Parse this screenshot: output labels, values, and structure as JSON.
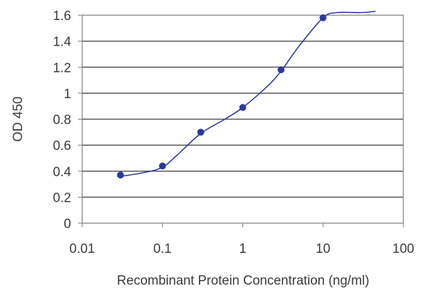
{
  "chart_data": {
    "type": "line",
    "title": "",
    "xlabel": "Recombinant Protein Concentration (ng/ml)",
    "ylabel": "OD 450",
    "x_scale": "log",
    "xlim": [
      0.01,
      100
    ],
    "ylim": [
      0,
      1.6
    ],
    "x_ticks": [
      0.01,
      0.1,
      1,
      10,
      100
    ],
    "x_tick_labels": [
      "0.01",
      "0.1",
      "1",
      "10",
      "100"
    ],
    "y_ticks": [
      0,
      0.2,
      0.4,
      0.6,
      0.8,
      1,
      1.2,
      1.4,
      1.6
    ],
    "y_tick_labels": [
      "0",
      "0.2",
      "0.4",
      "0.6",
      "0.8",
      "1",
      "1.2",
      "1.4",
      "1.6"
    ],
    "grid": "horizontal",
    "series": [
      {
        "color": "#2b3a9c",
        "points": [
          {
            "x": 0.03,
            "y": 0.37
          },
          {
            "x": 0.1,
            "y": 0.44
          },
          {
            "x": 0.3,
            "y": 0.7
          },
          {
            "x": 1,
            "y": 0.89
          },
          {
            "x": 3,
            "y": 1.18
          },
          {
            "x": 10,
            "y": 1.58
          }
        ],
        "fit_curve": [
          {
            "x": 0.03,
            "y": 0.36
          },
          {
            "x": 0.06,
            "y": 0.39
          },
          {
            "x": 0.1,
            "y": 0.43
          },
          {
            "x": 0.15,
            "y": 0.52
          },
          {
            "x": 0.3,
            "y": 0.69
          },
          {
            "x": 0.6,
            "y": 0.8
          },
          {
            "x": 1,
            "y": 0.89
          },
          {
            "x": 2,
            "y": 1.05
          },
          {
            "x": 3,
            "y": 1.17
          },
          {
            "x": 5,
            "y": 1.36
          },
          {
            "x": 10,
            "y": 1.58
          },
          {
            "x": 15,
            "y": 1.62
          },
          {
            "x": 30,
            "y": 1.62
          },
          {
            "x": 45,
            "y": 1.63
          }
        ]
      }
    ]
  }
}
